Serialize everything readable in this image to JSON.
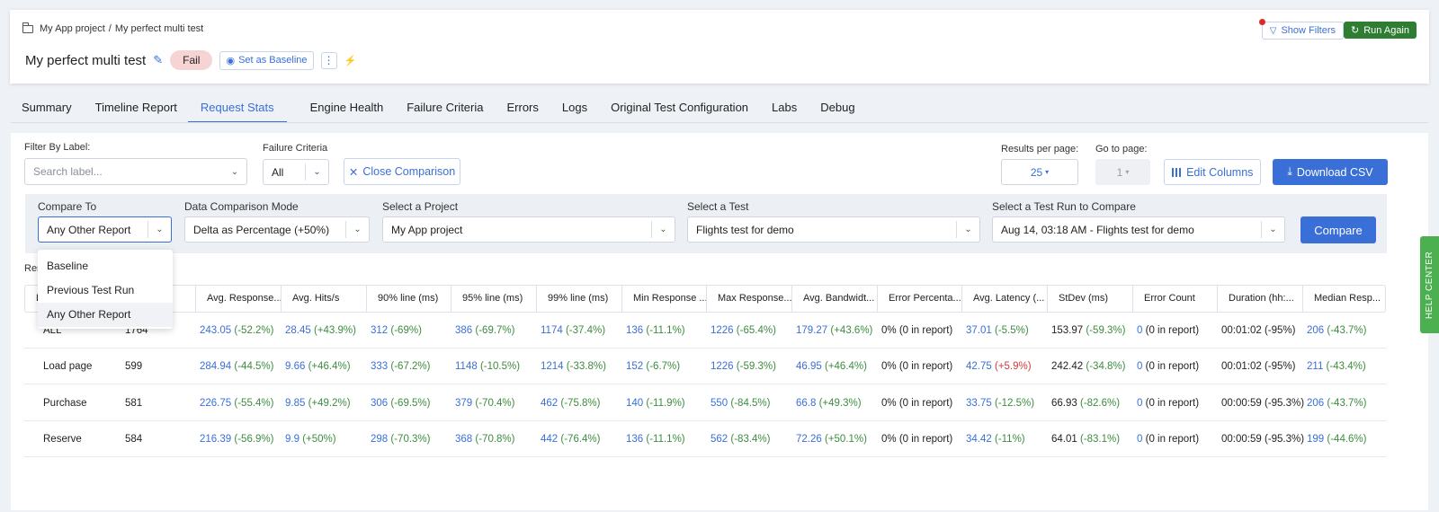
{
  "breadcrumb": {
    "project": "My App project",
    "separator": "/",
    "test": "My perfect multi test"
  },
  "header": {
    "title": "My perfect multi test",
    "status": "Fail",
    "set_baseline": "Set as Baseline",
    "kebab": "⋮",
    "show_filters": "Show Filters",
    "run_again": "Run Again"
  },
  "tabs": [
    {
      "label": "Summary"
    },
    {
      "label": "Timeline Report"
    },
    {
      "label": "Request Stats"
    },
    {
      "label": "Engine Health"
    },
    {
      "label": "Failure Criteria"
    },
    {
      "label": "Errors"
    },
    {
      "label": "Logs"
    },
    {
      "label": "Original Test Configuration"
    },
    {
      "label": "Labs"
    },
    {
      "label": "Debug"
    }
  ],
  "filters": {
    "label_title": "Filter By Label:",
    "label_placeholder": "Search label...",
    "failure_title": "Failure Criteria",
    "failure_value": "All",
    "close_comparison": "Close Comparison",
    "results_per_page_title": "Results per page:",
    "results_per_page": "25",
    "go_to_page_title": "Go to page:",
    "go_to_page": "1",
    "edit_columns": "Edit Columns",
    "download_csv": "Download CSV"
  },
  "compare": {
    "compare_to_title": "Compare To",
    "compare_to_value": "Any Other Report",
    "mode_title": "Data Comparison Mode",
    "mode_value": "Delta as Percentage (+50%)",
    "project_title": "Select a Project",
    "project_value": "My App project",
    "test_title": "Select a Test",
    "test_value": "Flights test for demo",
    "run_title": "Select a Test Run to Compare",
    "run_value": "Aug 14, 03:18 AM - Flights test for demo",
    "compare_button": "Compare",
    "options": [
      "Baseline",
      "Previous Test Run",
      "Any Other Report"
    ]
  },
  "results_label": "Res",
  "table": {
    "columns": [
      "L",
      "",
      "Avg. Response...",
      "Avg. Hits/s",
      "90% line (ms)",
      "95% line (ms)",
      "99% line (ms)",
      "Min Response ...",
      "Max Response...",
      "Avg. Bandwidt...",
      "Error Percenta...",
      "Avg. Latency (...",
      "StDev (ms)",
      "Error Count",
      "Duration (hh:...",
      "Median Resp..."
    ],
    "rows": [
      {
        "label": "ALL",
        "samples": "1764",
        "cells": [
          [
            "243.05",
            "(-52.2%)"
          ],
          [
            "28.45",
            "(+43.9%)"
          ],
          [
            "312",
            "(-69%)"
          ],
          [
            "386",
            "(-69.7%)"
          ],
          [
            "1174",
            "(-37.4%)"
          ],
          [
            "136",
            "(-11.1%)"
          ],
          [
            "1226",
            "(-65.4%)"
          ],
          [
            "179.27",
            "(+43.6%)"
          ],
          [
            "0% (0 in report)",
            ""
          ],
          [
            "37.01",
            "(-5.5%)"
          ],
          [
            "153.97",
            "(-59.3%)"
          ],
          [
            "0",
            "(0 in report)"
          ],
          [
            "00:01:02 (-95%)",
            ""
          ],
          [
            "206",
            "(-43.7%)"
          ]
        ]
      },
      {
        "label": "Load page",
        "samples": "599",
        "cells": [
          [
            "284.94",
            "(-44.5%)"
          ],
          [
            "9.66",
            "(+46.4%)"
          ],
          [
            "333",
            "(-67.2%)"
          ],
          [
            "1148",
            "(-10.5%)"
          ],
          [
            "1214",
            "(-33.8%)"
          ],
          [
            "152",
            "(-6.7%)"
          ],
          [
            "1226",
            "(-59.3%)"
          ],
          [
            "46.95",
            "(+46.4%)"
          ],
          [
            "0% (0 in report)",
            ""
          ],
          [
            "42.75",
            "(+5.9%)"
          ],
          [
            "242.42",
            "(-34.8%)"
          ],
          [
            "0",
            "(0 in report)"
          ],
          [
            "00:01:02 (-95%)",
            ""
          ],
          [
            "211",
            "(-43.4%)"
          ]
        ]
      },
      {
        "label": "Purchase",
        "samples": "581",
        "cells": [
          [
            "226.75",
            "(-55.4%)"
          ],
          [
            "9.85",
            "(+49.2%)"
          ],
          [
            "306",
            "(-69.5%)"
          ],
          [
            "379",
            "(-70.4%)"
          ],
          [
            "462",
            "(-75.8%)"
          ],
          [
            "140",
            "(-11.9%)"
          ],
          [
            "550",
            "(-84.5%)"
          ],
          [
            "66.8",
            "(+49.3%)"
          ],
          [
            "0% (0 in report)",
            ""
          ],
          [
            "33.75",
            "(-12.5%)"
          ],
          [
            "66.93",
            "(-82.6%)"
          ],
          [
            "0",
            "(0 in report)"
          ],
          [
            "00:00:59 (-95.3%)",
            ""
          ],
          [
            "206",
            "(-43.7%)"
          ]
        ]
      },
      {
        "label": "Reserve",
        "samples": "584",
        "cells": [
          [
            "216.39",
            "(-56.9%)"
          ],
          [
            "9.9",
            "(+50%)"
          ],
          [
            "298",
            "(-70.3%)"
          ],
          [
            "368",
            "(-70.8%)"
          ],
          [
            "442",
            "(-76.4%)"
          ],
          [
            "136",
            "(-11.1%)"
          ],
          [
            "562",
            "(-83.4%)"
          ],
          [
            "72.26",
            "(+50.1%)"
          ],
          [
            "0% (0 in report)",
            ""
          ],
          [
            "34.42",
            "(-11%)"
          ],
          [
            "64.01",
            "(-83.1%)"
          ],
          [
            "0",
            "(0 in report)"
          ],
          [
            "00:00:59 (-95.3%)",
            ""
          ],
          [
            "199",
            "(-44.6%)"
          ]
        ]
      }
    ]
  },
  "help_center": "HELP CENTER",
  "colors": {
    "primary": "#3a6fd8",
    "success": "#2e7d32",
    "positive_delta": "#3d8c40",
    "negative_delta": "#d33a3a",
    "fail_bg": "#f6d4d4"
  }
}
